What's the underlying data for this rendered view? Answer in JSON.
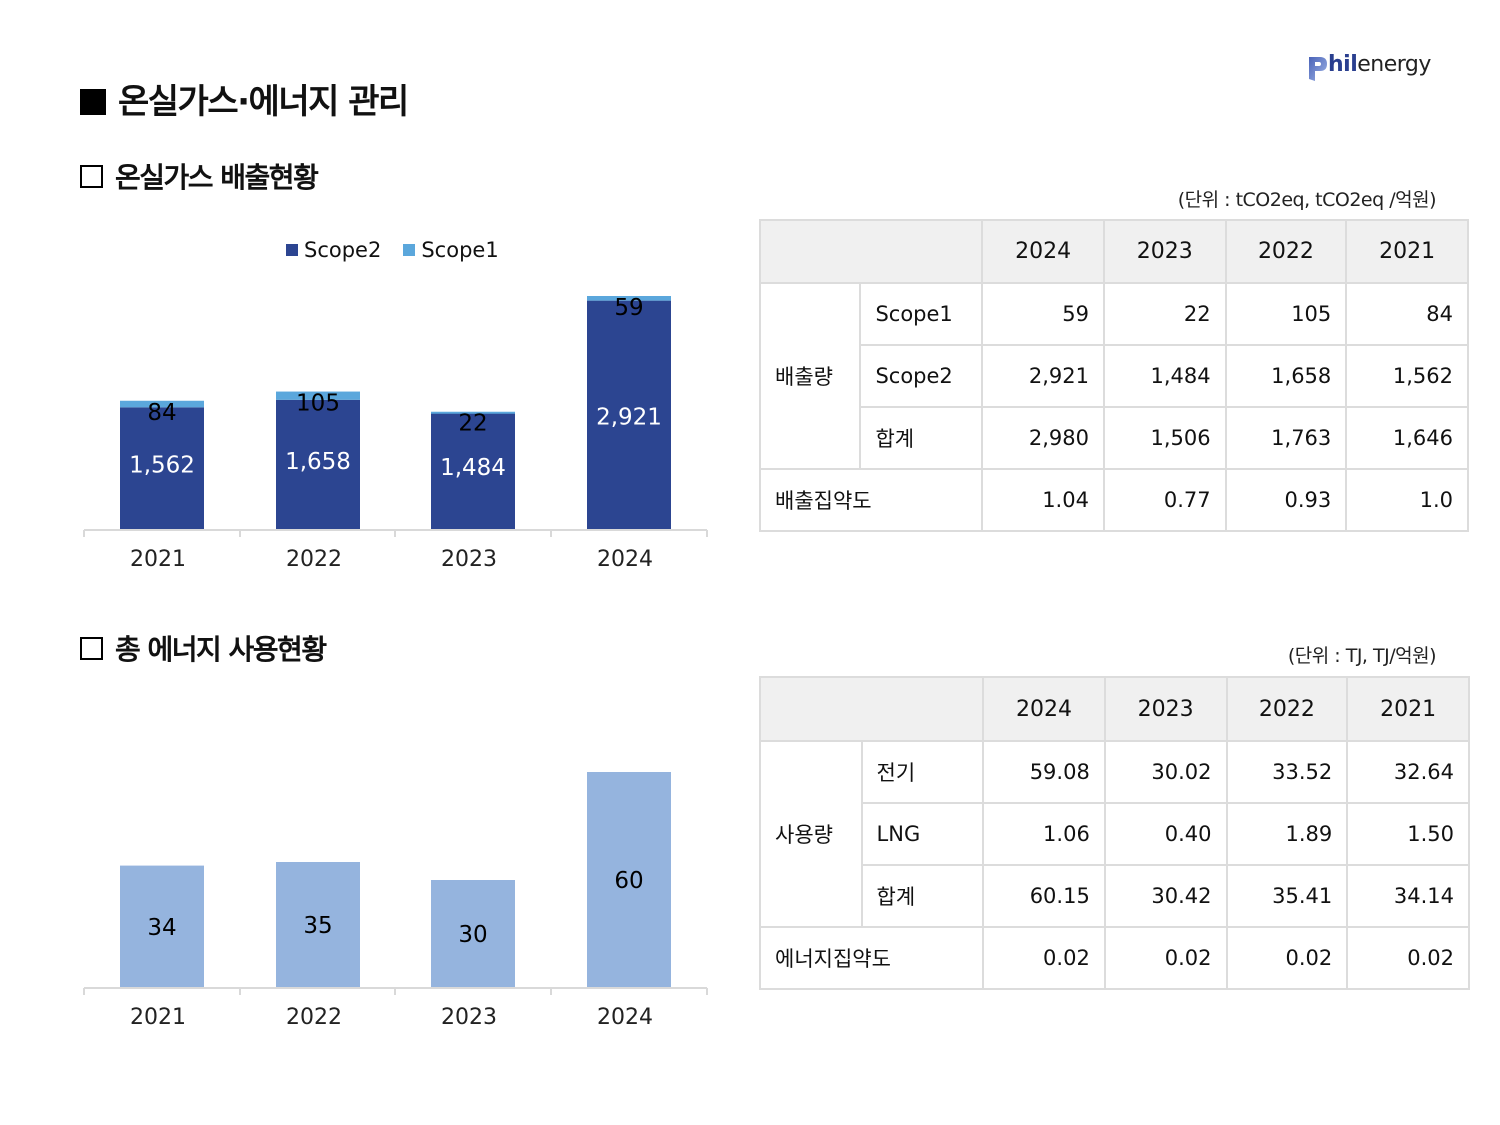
{
  "header": {
    "title": "온실가스·에너지 관리",
    "logo_bold": "hil",
    "logo_light": "energy",
    "logo_text": "Philenergy"
  },
  "colors": {
    "scope2": "#2c4591",
    "scope1": "#5ba7dc",
    "energy": "#95b4de",
    "table_header_bg": "#f0f0f0",
    "grid": "#d9d9d9"
  },
  "ghg_section": {
    "title": "온실가스 배출현황",
    "unit": "(단위 : tCO2eq, tCO2eq /억원)",
    "table": {
      "columns": [
        "",
        "2024",
        "2023",
        "2022",
        "2021"
      ],
      "group_label": "배출량",
      "rows": [
        {
          "label": "Scope1",
          "values": [
            "59",
            "22",
            "105",
            "84"
          ]
        },
        {
          "label": "Scope2",
          "values": [
            "2,921",
            "1,484",
            "1,658",
            "1,562"
          ]
        },
        {
          "label": "합계",
          "values": [
            "2,980",
            "1,506",
            "1,763",
            "1,646"
          ]
        }
      ],
      "intensity": {
        "label": "배출집약도",
        "values": [
          "1.04",
          "0.77",
          "0.93",
          "1.0"
        ]
      }
    }
  },
  "energy_section": {
    "title": "총 에너지 사용현황",
    "unit": "(단위 : TJ, TJ/억원)",
    "table": {
      "columns": [
        "",
        "2024",
        "2023",
        "2022",
        "2021"
      ],
      "group_label": "사용량",
      "rows": [
        {
          "label": "전기",
          "values": [
            "59.08",
            "30.02",
            "33.52",
            "32.64"
          ]
        },
        {
          "label": "LNG",
          "values": [
            "1.06",
            "0.40",
            "1.89",
            "1.50"
          ]
        },
        {
          "label": "합계",
          "values": [
            "60.15",
            "30.42",
            "35.41",
            "34.14"
          ]
        }
      ],
      "intensity": {
        "label": "에너지집약도",
        "values": [
          "0.02",
          "0.02",
          "0.02",
          "0.02"
        ]
      }
    }
  },
  "chart_data": [
    {
      "type": "bar",
      "stacked": true,
      "title": "",
      "xlabel": "",
      "ylabel": "",
      "categories": [
        "2021",
        "2022",
        "2023",
        "2024"
      ],
      "series": [
        {
          "name": "Scope2",
          "values": [
            1562,
            1658,
            1484,
            2921
          ],
          "labels": [
            "1,562",
            "1,658",
            "1,484",
            "2,921"
          ]
        },
        {
          "name": "Scope1",
          "values": [
            84,
            105,
            22,
            59
          ],
          "labels": [
            "84",
            "105",
            "22",
            "59"
          ]
        }
      ],
      "legend": [
        "Scope2",
        "Scope1"
      ],
      "legend_position": "top",
      "ylim": [
        0,
        2980
      ],
      "grid": false
    },
    {
      "type": "bar",
      "title": "",
      "xlabel": "",
      "ylabel": "",
      "categories": [
        "2021",
        "2022",
        "2023",
        "2024"
      ],
      "values": [
        34,
        35,
        30,
        60
      ],
      "labels": [
        "34",
        "35",
        "30",
        "60"
      ],
      "ylim": [
        0,
        60
      ],
      "grid": false
    }
  ]
}
